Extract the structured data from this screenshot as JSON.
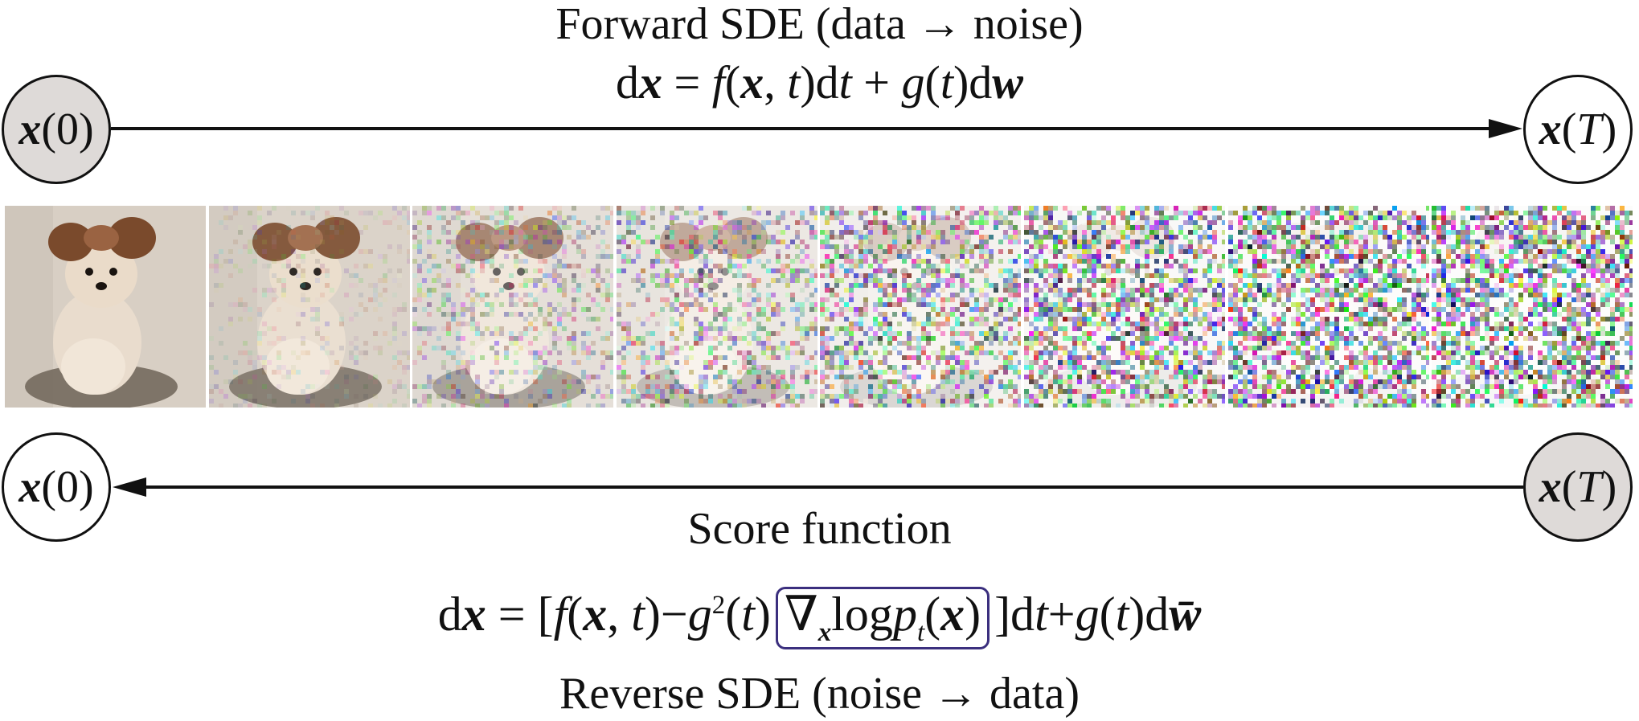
{
  "forward": {
    "title_prefix": "Forward SDE (data ",
    "arrow_glyph": "→",
    "title_suffix": " noise)",
    "equation_parts": [
      "d",
      "x",
      " = ",
      "f",
      "(",
      "x",
      ", ",
      "t",
      ")d",
      "t",
      " + ",
      "g",
      "(",
      "t",
      ")d",
      "w"
    ]
  },
  "reverse": {
    "title_prefix": "Reverse SDE (noise ",
    "arrow_glyph": "→",
    "title_suffix": " data)",
    "score_label": "Score function",
    "equation_parts": [
      "d",
      "x",
      " = [",
      "f",
      "(",
      "x",
      ", ",
      "t",
      ")−",
      "g",
      "2",
      "(",
      "t",
      ")",
      "∇",
      "x",
      "log",
      "p",
      "t",
      "(",
      "x",
      ")",
      "]d",
      "t",
      "+",
      "g",
      "(",
      "t",
      ")d",
      "w̄"
    ]
  },
  "nodes": {
    "start_symbol": "x",
    "start_arg": "0",
    "end_symbol": "x",
    "end_arg": "T"
  },
  "frames": {
    "count": 8,
    "noise_levels": [
      0.0,
      0.18,
      0.42,
      0.6,
      0.78,
      0.92,
      0.98,
      1.0
    ]
  },
  "colors": {
    "shaded_node": "#dedad8",
    "score_box_border": "#3b2f7e",
    "line": "#111111"
  }
}
